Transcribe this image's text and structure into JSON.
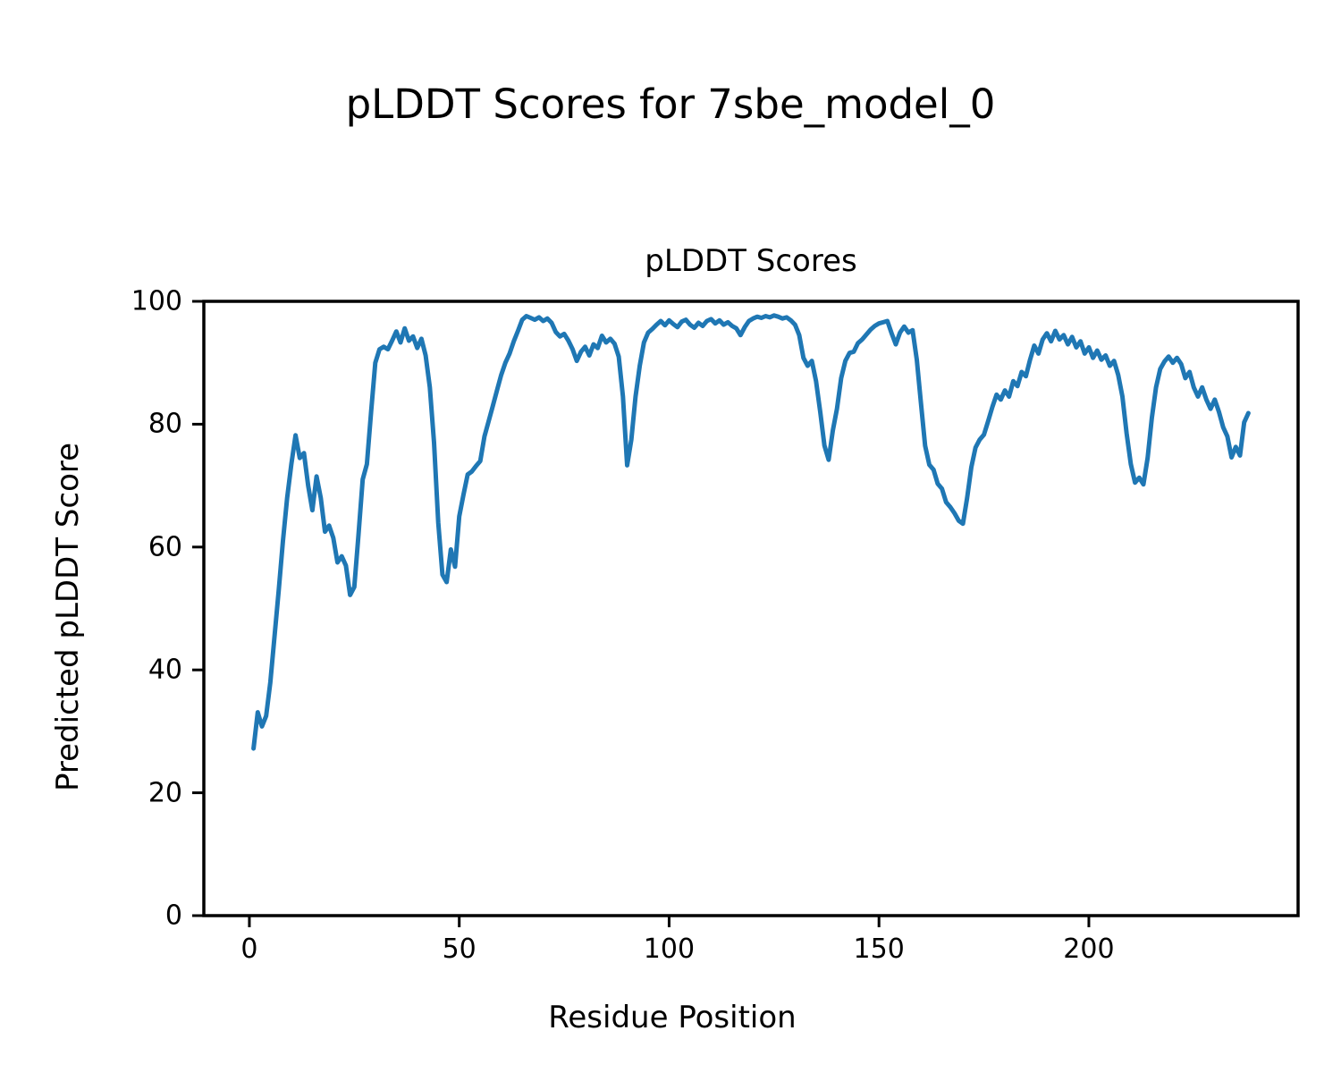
{
  "figure": {
    "suptitle": "pLDDT Scores for 7sbe_model_0"
  },
  "chart_data": {
    "type": "line",
    "title": "pLDDT Scores",
    "xlabel": "Residue Position",
    "ylabel": "Predicted pLDDT Score",
    "grid": false,
    "legend": null,
    "xlim": [
      -10.85,
      249.85
    ],
    "ylim": [
      0,
      100
    ],
    "xticks": [
      0,
      50,
      100,
      150,
      200
    ],
    "yticks": [
      0,
      20,
      40,
      60,
      80,
      100
    ],
    "series": [
      {
        "name": "pLDDT",
        "color": "#1f77b4",
        "line_width": 5,
        "x_start": 1,
        "values": [
          27.2,
          33.1,
          30.8,
          32.5,
          38.0,
          45.5,
          53.0,
          61.0,
          68.0,
          73.5,
          78.2,
          74.5,
          75.3,
          70.0,
          66.0,
          71.5,
          68.0,
          62.5,
          63.5,
          61.5,
          57.5,
          58.5,
          57.0,
          52.2,
          53.5,
          62.0,
          71.0,
          73.5,
          82.0,
          90.0,
          92.2,
          92.6,
          92.2,
          93.6,
          95.1,
          93.3,
          95.6,
          93.6,
          94.3,
          92.4,
          93.9,
          91.2,
          86.0,
          77.0,
          64.0,
          55.5,
          54.3,
          59.6,
          56.8,
          65.0,
          68.5,
          71.8,
          72.3,
          73.2,
          74.0,
          78.0,
          80.5,
          83.0,
          85.5,
          88.0,
          90.0,
          91.5,
          93.5,
          95.2,
          97.0,
          97.6,
          97.3,
          97.0,
          97.4,
          96.8,
          97.2,
          96.5,
          95.0,
          94.3,
          94.7,
          93.6,
          92.2,
          90.3,
          91.8,
          92.6,
          91.2,
          93.0,
          92.4,
          94.4,
          93.3,
          93.9,
          93.1,
          91.0,
          84.5,
          73.3,
          77.5,
          84.5,
          89.5,
          93.3,
          94.9,
          95.5,
          96.2,
          96.8,
          96.1,
          96.9,
          96.3,
          95.8,
          96.7,
          97.0,
          96.2,
          95.7,
          96.5,
          96.0,
          96.8,
          97.1,
          96.4,
          96.9,
          96.2,
          96.6,
          96.0,
          95.6,
          94.5,
          95.8,
          96.8,
          97.2,
          97.5,
          97.3,
          97.6,
          97.4,
          97.7,
          97.5,
          97.2,
          97.4,
          96.9,
          96.2,
          94.5,
          90.8,
          89.5,
          90.3,
          87.0,
          82.0,
          76.5,
          74.2,
          79.0,
          82.5,
          87.5,
          90.3,
          91.6,
          91.8,
          93.2,
          93.8,
          94.6,
          95.4,
          96.0,
          96.4,
          96.6,
          96.8,
          94.8,
          93.0,
          94.9,
          95.9,
          94.9,
          95.3,
          90.5,
          83.5,
          76.5,
          73.4,
          72.6,
          70.3,
          69.5,
          67.3,
          66.5,
          65.5,
          64.3,
          63.8,
          68.0,
          73.0,
          76.2,
          77.5,
          78.3,
          80.5,
          82.8,
          84.8,
          84.0,
          85.5,
          84.5,
          87.0,
          86.2,
          88.5,
          87.8,
          90.5,
          92.8,
          91.5,
          93.8,
          94.8,
          93.5,
          95.2,
          93.8,
          94.5,
          93.0,
          94.2,
          92.5,
          93.5,
          91.5,
          92.5,
          90.8,
          92.0,
          90.5,
          91.2,
          89.5,
          90.3,
          88.0,
          84.5,
          78.5,
          73.5,
          70.5,
          71.3,
          70.2,
          74.5,
          81.0,
          86.0,
          89.0,
          90.2,
          91.0,
          90.0,
          90.8,
          89.8,
          87.5,
          88.5,
          86.0,
          84.5,
          86.0,
          84.0,
          82.5,
          84.0,
          82.0,
          79.5,
          78.0,
          74.6,
          76.3,
          74.9,
          80.3,
          81.8
        ]
      }
    ]
  }
}
